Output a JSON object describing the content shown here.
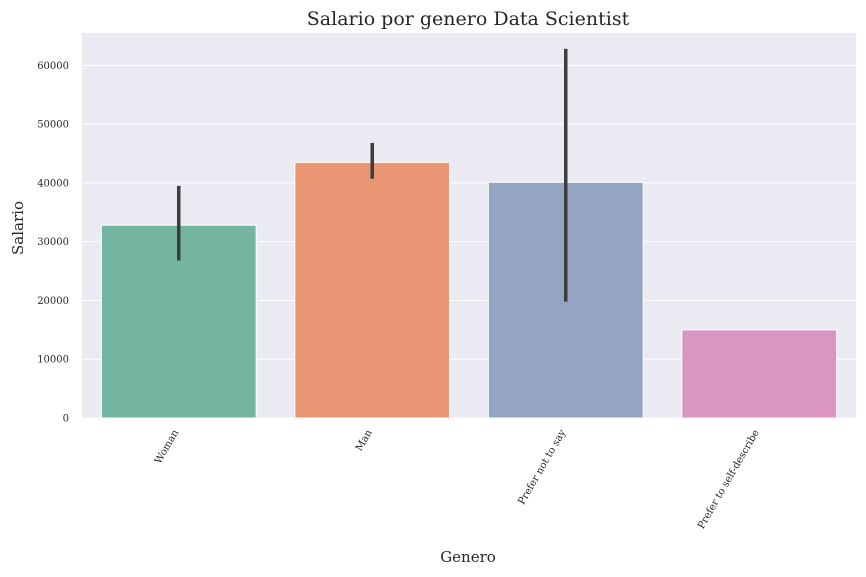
{
  "chart_data": {
    "type": "bar",
    "title": "Salario por genero Data Scientist",
    "xlabel": "Genero",
    "ylabel": "Salario",
    "categories": [
      "Woman",
      "Man",
      "Prefer not to say",
      "Prefer to self-describe"
    ],
    "values": [
      32800,
      43500,
      40100,
      15000
    ],
    "error_bars": [
      {
        "low": 26800,
        "high": 39500
      },
      {
        "low": 40700,
        "high": 46800
      },
      {
        "low": 19800,
        "high": 62800
      },
      null
    ],
    "colors": [
      "#73b5a0",
      "#e89674",
      "#94a4c3",
      "#db95c2"
    ],
    "ylim": [
      0,
      65500
    ],
    "yticks": [
      0,
      10000,
      20000,
      30000,
      40000,
      50000,
      60000
    ],
    "ytick_labels": [
      "0",
      "10000",
      "20000",
      "30000",
      "40000",
      "50000",
      "60000"
    ],
    "grid": true,
    "x_tick_rotation_deg": 60,
    "background": "#eaeaf2",
    "grid_color": "#ffffff",
    "error_bar_color": "#3d3d3d"
  }
}
